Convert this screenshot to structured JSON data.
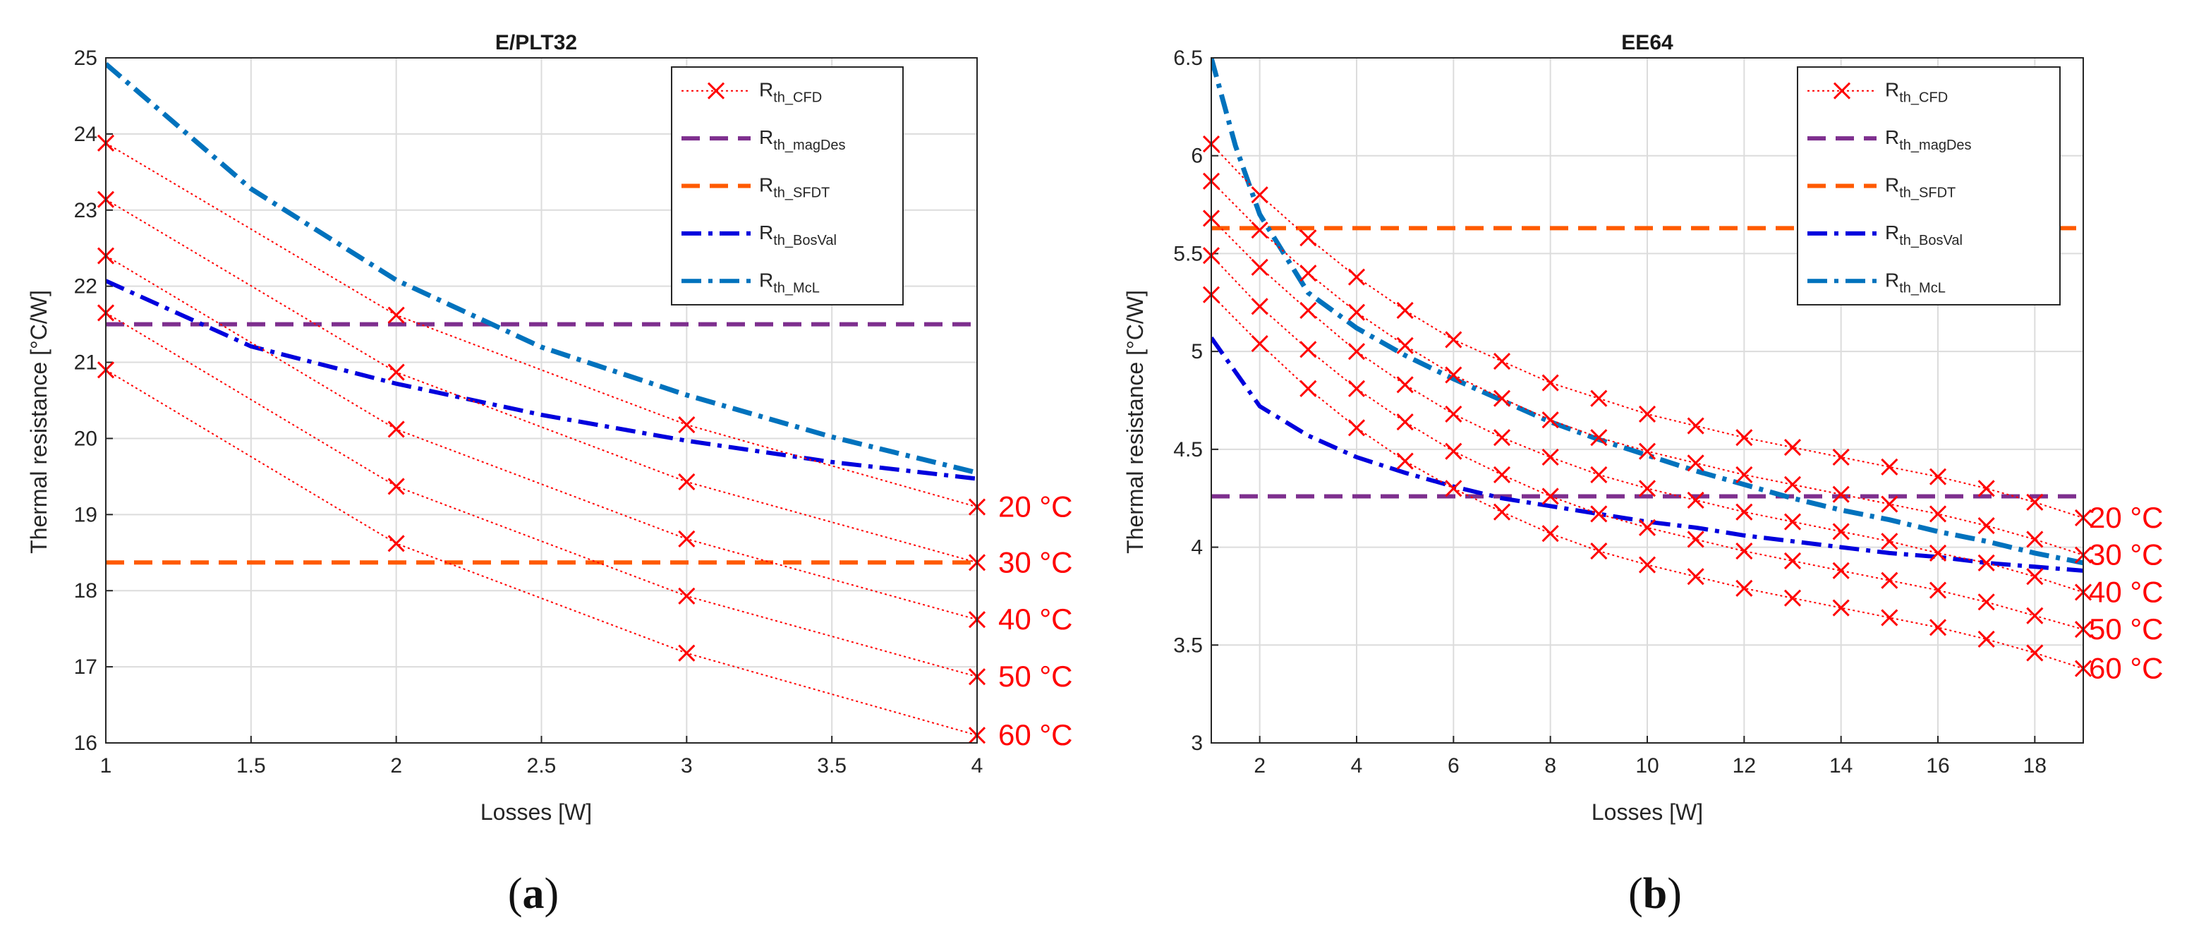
{
  "chart_data": [
    {
      "type": "line",
      "title": "E/PLT32",
      "xlabel": "Losses [W]",
      "ylabel": "Thermal resistance [°C/W]",
      "xlim": [
        1,
        4
      ],
      "ylim": [
        16,
        25
      ],
      "xticks": [
        "1",
        "1.5",
        "2",
        "2.5",
        "3",
        "3.5",
        "4"
      ],
      "yticks": [
        "16",
        "17",
        "18",
        "19",
        "20",
        "21",
        "22",
        "23",
        "24",
        "25"
      ],
      "grid": true,
      "legend_position": "top-right",
      "legend": [
        {
          "main": "R",
          "sub": "th_CFD",
          "color": "#ff0000",
          "style": "dotted-x"
        },
        {
          "main": "R",
          "sub": "th_magDes",
          "color": "#7e2f8e",
          "style": "dashed"
        },
        {
          "main": "R",
          "sub": "th_SFDT",
          "color": "#ff5a00",
          "style": "dashed"
        },
        {
          "main": "R",
          "sub": "th_BosVal",
          "color": "#0000dd",
          "style": "dashdot"
        },
        {
          "main": "R",
          "sub": "th_McL",
          "color": "#0072bd",
          "style": "dashdot"
        }
      ],
      "x": [
        1,
        2,
        3,
        4
      ],
      "cfd_series": [
        {
          "name": "20 °C",
          "values": [
            23.88,
            21.62,
            20.18,
            19.1
          ]
        },
        {
          "name": "30 °C",
          "values": [
            23.14,
            20.87,
            19.43,
            18.37
          ]
        },
        {
          "name": "40 °C",
          "values": [
            22.4,
            20.12,
            18.68,
            17.62
          ]
        },
        {
          "name": "50 °C",
          "values": [
            21.65,
            19.37,
            17.93,
            16.87
          ]
        },
        {
          "name": "60 °C",
          "values": [
            20.9,
            18.62,
            17.18,
            16.1
          ]
        }
      ],
      "magDes_value": 21.5,
      "sfdt_value": 18.37,
      "bosval_curve": {
        "x": [
          1,
          1.5,
          2,
          2.5,
          3,
          3.5,
          4
        ],
        "y": [
          22.07,
          21.21,
          20.72,
          20.31,
          19.97,
          19.69,
          19.47
        ]
      },
      "mcl_curve": {
        "x": [
          1,
          1.5,
          2,
          2.5,
          3,
          3.5,
          4
        ],
        "y": [
          24.92,
          23.28,
          22.08,
          21.2,
          20.57,
          20.02,
          19.55
        ]
      },
      "caption": {
        "open": "(",
        "letter": "a",
        "close": ")"
      }
    },
    {
      "type": "line",
      "title": "EE64",
      "xlabel": "Losses [W]",
      "ylabel": "Thermal resistance [°C/W]",
      "xlim": [
        1,
        19
      ],
      "ylim": [
        3,
        6.5
      ],
      "xticks": [
        "2",
        "4",
        "6",
        "8",
        "10",
        "12",
        "14",
        "16",
        "18"
      ],
      "yticks": [
        "3",
        "3.5",
        "4",
        "4.5",
        "5",
        "5.5",
        "6",
        "6.5"
      ],
      "grid": true,
      "legend_position": "top-right",
      "legend": [
        {
          "main": "R",
          "sub": "th_CFD",
          "color": "#ff0000",
          "style": "dotted-x"
        },
        {
          "main": "R",
          "sub": "th_magDes",
          "color": "#7e2f8e",
          "style": "dashed"
        },
        {
          "main": "R",
          "sub": "th_SFDT",
          "color": "#ff5a00",
          "style": "dashed"
        },
        {
          "main": "R",
          "sub": "th_BosVal",
          "color": "#0000dd",
          "style": "dashdot"
        },
        {
          "main": "R",
          "sub": "th_McL",
          "color": "#0072bd",
          "style": "dashdot"
        }
      ],
      "x": [
        1,
        2,
        3,
        4,
        5,
        6,
        7,
        8,
        9,
        10,
        11,
        12,
        13,
        14,
        15,
        16,
        17,
        18,
        19
      ],
      "cfd_series": [
        {
          "name": "20 °C",
          "values": [
            6.06,
            5.8,
            5.58,
            5.38,
            5.21,
            5.06,
            4.95,
            4.84,
            4.76,
            4.68,
            4.62,
            4.56,
            4.51,
            4.46,
            4.41,
            4.36,
            4.3,
            4.23,
            4.15
          ]
        },
        {
          "name": "30 °C",
          "values": [
            5.87,
            5.62,
            5.4,
            5.2,
            5.03,
            4.88,
            4.76,
            4.65,
            4.56,
            4.49,
            4.43,
            4.37,
            4.32,
            4.27,
            4.22,
            4.17,
            4.11,
            4.04,
            3.96
          ]
        },
        {
          "name": "40 °C",
          "values": [
            5.68,
            5.43,
            5.21,
            5.0,
            4.83,
            4.68,
            4.56,
            4.46,
            4.37,
            4.3,
            4.24,
            4.18,
            4.13,
            4.08,
            4.03,
            3.97,
            3.92,
            3.85,
            3.77
          ]
        },
        {
          "name": "50 °C",
          "values": [
            5.49,
            5.23,
            5.01,
            4.81,
            4.64,
            4.49,
            4.37,
            4.26,
            4.17,
            4.1,
            4.04,
            3.98,
            3.93,
            3.88,
            3.83,
            3.78,
            3.72,
            3.65,
            3.58
          ]
        },
        {
          "name": "60 °C",
          "values": [
            5.29,
            5.04,
            4.81,
            4.61,
            4.44,
            4.3,
            4.18,
            4.07,
            3.98,
            3.91,
            3.85,
            3.79,
            3.74,
            3.69,
            3.64,
            3.59,
            3.53,
            3.46,
            3.38
          ]
        }
      ],
      "magDes_value": 4.26,
      "sfdt_value": 5.63,
      "bosval_curve": {
        "x": [
          1,
          2,
          3,
          4,
          5,
          6,
          7,
          8,
          9,
          10,
          11,
          12,
          13,
          14,
          15,
          16,
          17,
          18,
          19
        ],
        "y": [
          5.07,
          4.72,
          4.57,
          4.46,
          4.38,
          4.31,
          4.25,
          4.21,
          4.17,
          4.13,
          4.1,
          4.06,
          4.03,
          4.0,
          3.97,
          3.95,
          3.92,
          3.9,
          3.88
        ]
      },
      "mcl_curve": {
        "x": [
          1,
          1.5,
          2,
          3,
          4,
          5,
          6,
          7,
          8,
          9,
          10,
          11,
          12,
          13,
          14,
          15,
          16,
          17,
          18,
          19
        ],
        "y": [
          6.5,
          6.05,
          5.7,
          5.3,
          5.12,
          4.98,
          4.86,
          4.75,
          4.64,
          4.55,
          4.47,
          4.39,
          4.32,
          4.25,
          4.19,
          4.14,
          4.08,
          4.03,
          3.97,
          3.92
        ]
      },
      "caption": {
        "open": "(",
        "letter": "b",
        "close": ")"
      }
    }
  ]
}
